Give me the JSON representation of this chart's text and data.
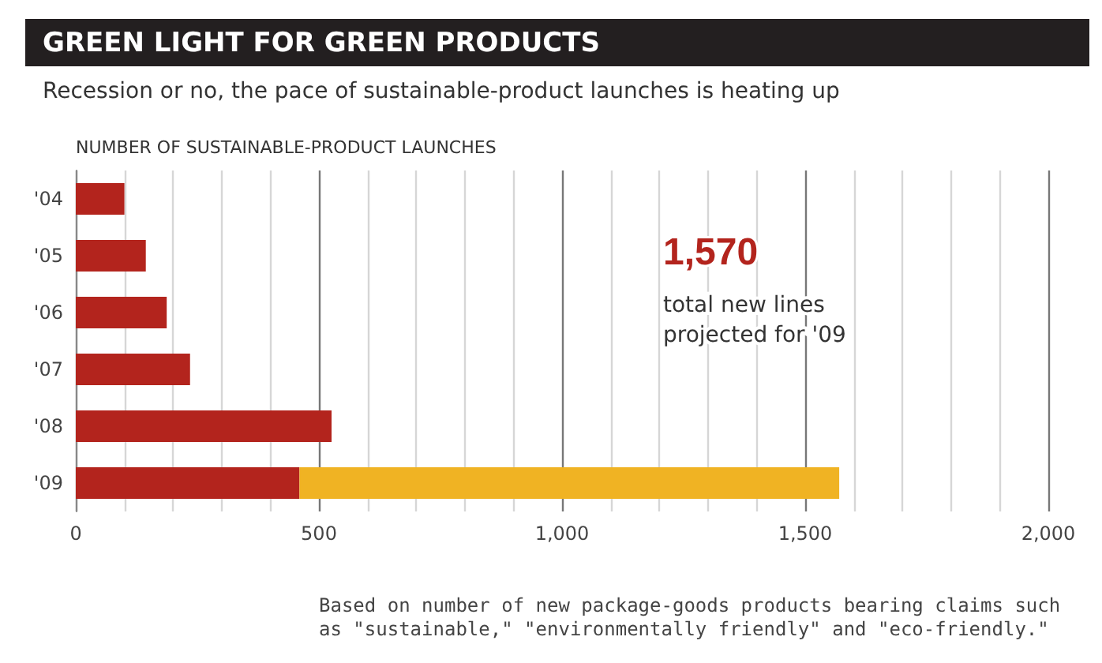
{
  "chart_data": {
    "type": "bar",
    "orientation": "horizontal",
    "stacked": true,
    "title": "GREEN LIGHT FOR GREEN PRODUCTS",
    "subtitle": "Recession or no, the pace of sustainable-product launches is heating up",
    "xlabel": "NUMBER OF SUSTAINABLE-PRODUCT LAUNCHES",
    "categories": [
      "'04",
      "'05",
      "'06",
      "'07",
      "'08",
      "'09"
    ],
    "series": [
      {
        "color": "#b3241d",
        "values": [
          100,
          144,
          187,
          235,
          526,
          460
        ]
      },
      {
        "color": "#f0b323",
        "values": [
          null,
          null,
          null,
          null,
          null,
          1110
        ]
      }
    ],
    "xlim": [
      0,
      2000
    ],
    "xticks": [
      0,
      {
        "value": 100,
        "label": null
      },
      {
        "value": 200,
        "label": null
      },
      {
        "value": 300,
        "label": null
      },
      {
        "value": 400,
        "label": null
      },
      {
        "value": 500,
        "label": "500"
      },
      {
        "value": 600,
        "label": null
      },
      {
        "value": 700,
        "label": null
      },
      {
        "value": 800,
        "label": null
      },
      {
        "value": 900,
        "label": null
      },
      {
        "value": 1000,
        "label": "1,000"
      },
      {
        "value": 1100,
        "label": null
      },
      {
        "value": 1200,
        "label": null
      },
      {
        "value": 1300,
        "label": null
      },
      {
        "value": 1400,
        "label": null
      },
      {
        "value": 1500,
        "label": "1,500"
      },
      {
        "value": 1600,
        "label": null
      },
      {
        "value": 1700,
        "label": null
      },
      {
        "value": 1800,
        "label": null
      },
      {
        "value": 1900,
        "label": null
      },
      {
        "value": 2000,
        "label": "2,000"
      }
    ],
    "grid": "x",
    "annotations": [
      "1,570",
      "total new lines projected for '09",
      "Based on number of new package-goods products bearing claims such as \"sustainable,\" \"environmentally friendly\" and \"eco-friendly.\""
    ]
  }
}
